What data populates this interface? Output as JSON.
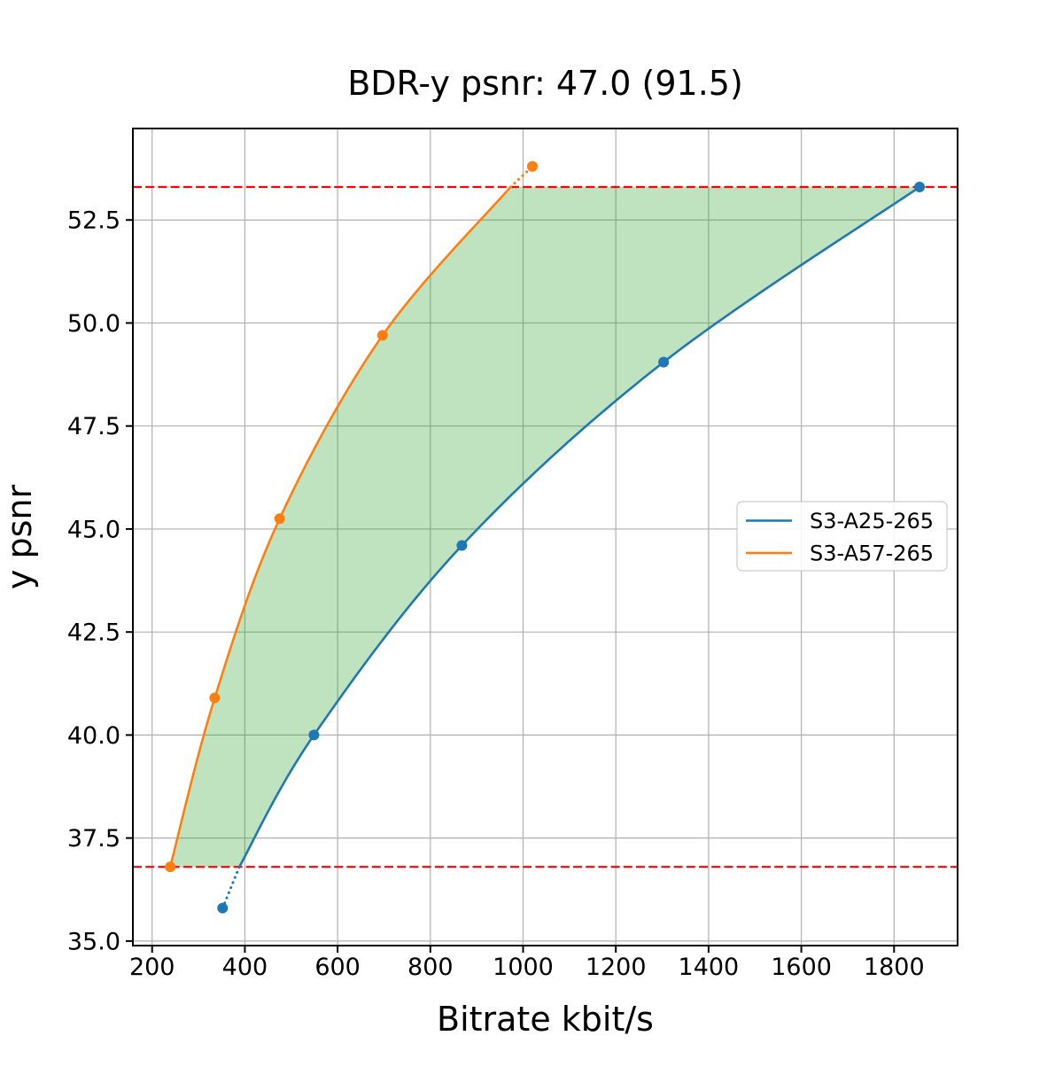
{
  "chart_data": {
    "type": "line",
    "title": "BDR-y psnr: 47.0 (91.5)",
    "xlabel": "Bitrate kbit/s",
    "ylabel": "y psnr",
    "xlim": [
      158.5,
      1937
    ],
    "ylim": [
      34.89,
      54.72
    ],
    "x_ticks": [
      200,
      400,
      600,
      800,
      1000,
      1200,
      1400,
      1600,
      1800
    ],
    "x_tick_labels": [
      "200",
      "400",
      "600",
      "800",
      "1000",
      "1200",
      "1400",
      "1600",
      "1800"
    ],
    "y_ticks": [
      35.0,
      37.5,
      40.0,
      42.5,
      45.0,
      47.5,
      50.0,
      52.5
    ],
    "y_tick_labels": [
      "35.0",
      "37.5",
      "40.0",
      "42.5",
      "45.0",
      "47.5",
      "50.0",
      "52.5"
    ],
    "grid": true,
    "grid_color": "#b0b0b0",
    "series": [
      {
        "name": "S3-A25-265",
        "color": "#1f77b4",
        "markers": [
          [
            352,
            35.8
          ],
          [
            549,
            40.0
          ],
          [
            868,
            44.6
          ],
          [
            1303,
            49.05
          ],
          [
            1855,
            53.3
          ]
        ],
        "solid_curve": [
          [
            388,
            36.8
          ],
          [
            549,
            40.0
          ],
          [
            868,
            44.6
          ],
          [
            1303,
            49.05
          ],
          [
            1855,
            53.3
          ]
        ],
        "dotted_segment": [
          [
            352,
            35.8
          ],
          [
            388,
            36.8
          ]
        ]
      },
      {
        "name": "S3-A57-265",
        "color": "#ff7f0e",
        "markers": [
          [
            239,
            36.8
          ],
          [
            335,
            40.9
          ],
          [
            475,
            45.25
          ],
          [
            697,
            49.7
          ],
          [
            1020,
            53.8
          ]
        ],
        "solid_curve": [
          [
            239,
            36.8
          ],
          [
            335,
            40.9
          ],
          [
            475,
            45.25
          ],
          [
            697,
            49.7
          ],
          [
            973,
            53.3
          ]
        ],
        "dotted_segment": [
          [
            973,
            53.3
          ],
          [
            1020,
            53.8
          ]
        ]
      }
    ],
    "hlines": {
      "values": [
        36.8,
        53.3
      ],
      "color": "#ff0000",
      "style": "dashed"
    },
    "shaded_region": {
      "between": [
        "S3-A57-265",
        "S3-A25-265"
      ],
      "y_range": [
        36.8,
        53.3
      ],
      "color": "#2ca02c",
      "alpha": 0.3
    },
    "legend": {
      "position": "center-right",
      "entries": [
        "S3-A25-265",
        "S3-A57-265"
      ]
    }
  }
}
